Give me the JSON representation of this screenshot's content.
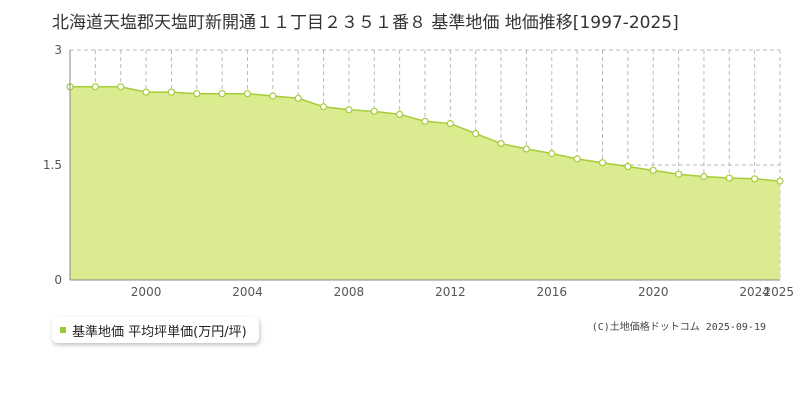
{
  "chart_data": {
    "type": "area",
    "title": "北海道天塩郡天塩町新開通１１丁目２３５１番８ 基準地価 地価推移[1997-2025]",
    "xlabel": "",
    "ylabel": "",
    "x": [
      1997,
      1998,
      1999,
      2000,
      2001,
      2002,
      2003,
      2004,
      2005,
      2006,
      2007,
      2008,
      2009,
      2010,
      2011,
      2012,
      2013,
      2014,
      2015,
      2016,
      2017,
      2018,
      2019,
      2020,
      2021,
      2022,
      2023,
      2024,
      2025
    ],
    "series": [
      {
        "name": "基準地価 平均坪単価(万円/坪)",
        "values": [
          2.52,
          2.52,
          2.52,
          2.45,
          2.45,
          2.43,
          2.43,
          2.43,
          2.4,
          2.37,
          2.26,
          2.22,
          2.2,
          2.16,
          2.07,
          2.04,
          1.91,
          1.78,
          1.71,
          1.65,
          1.58,
          1.53,
          1.48,
          1.43,
          1.38,
          1.35,
          1.33,
          1.32,
          1.29
        ]
      }
    ],
    "xlim": [
      1997,
      2025
    ],
    "ylim": [
      0,
      3
    ],
    "x_ticks": [
      "2000",
      "2004",
      "2008",
      "2012",
      "2016",
      "2020",
      "2024",
      "2025"
    ],
    "y_ticks": [
      "0",
      "1.5",
      "3"
    ],
    "grid": true,
    "colors": {
      "fill": "#dbeb8f",
      "line": "#a7cc3a",
      "marker_fill": "#ffffff",
      "grid": "#bbbbbb"
    }
  },
  "legend": {
    "label": "基準地価 平均坪単価(万円/坪)"
  },
  "copyright": "(C)土地価格ドットコム 2025-09-19"
}
